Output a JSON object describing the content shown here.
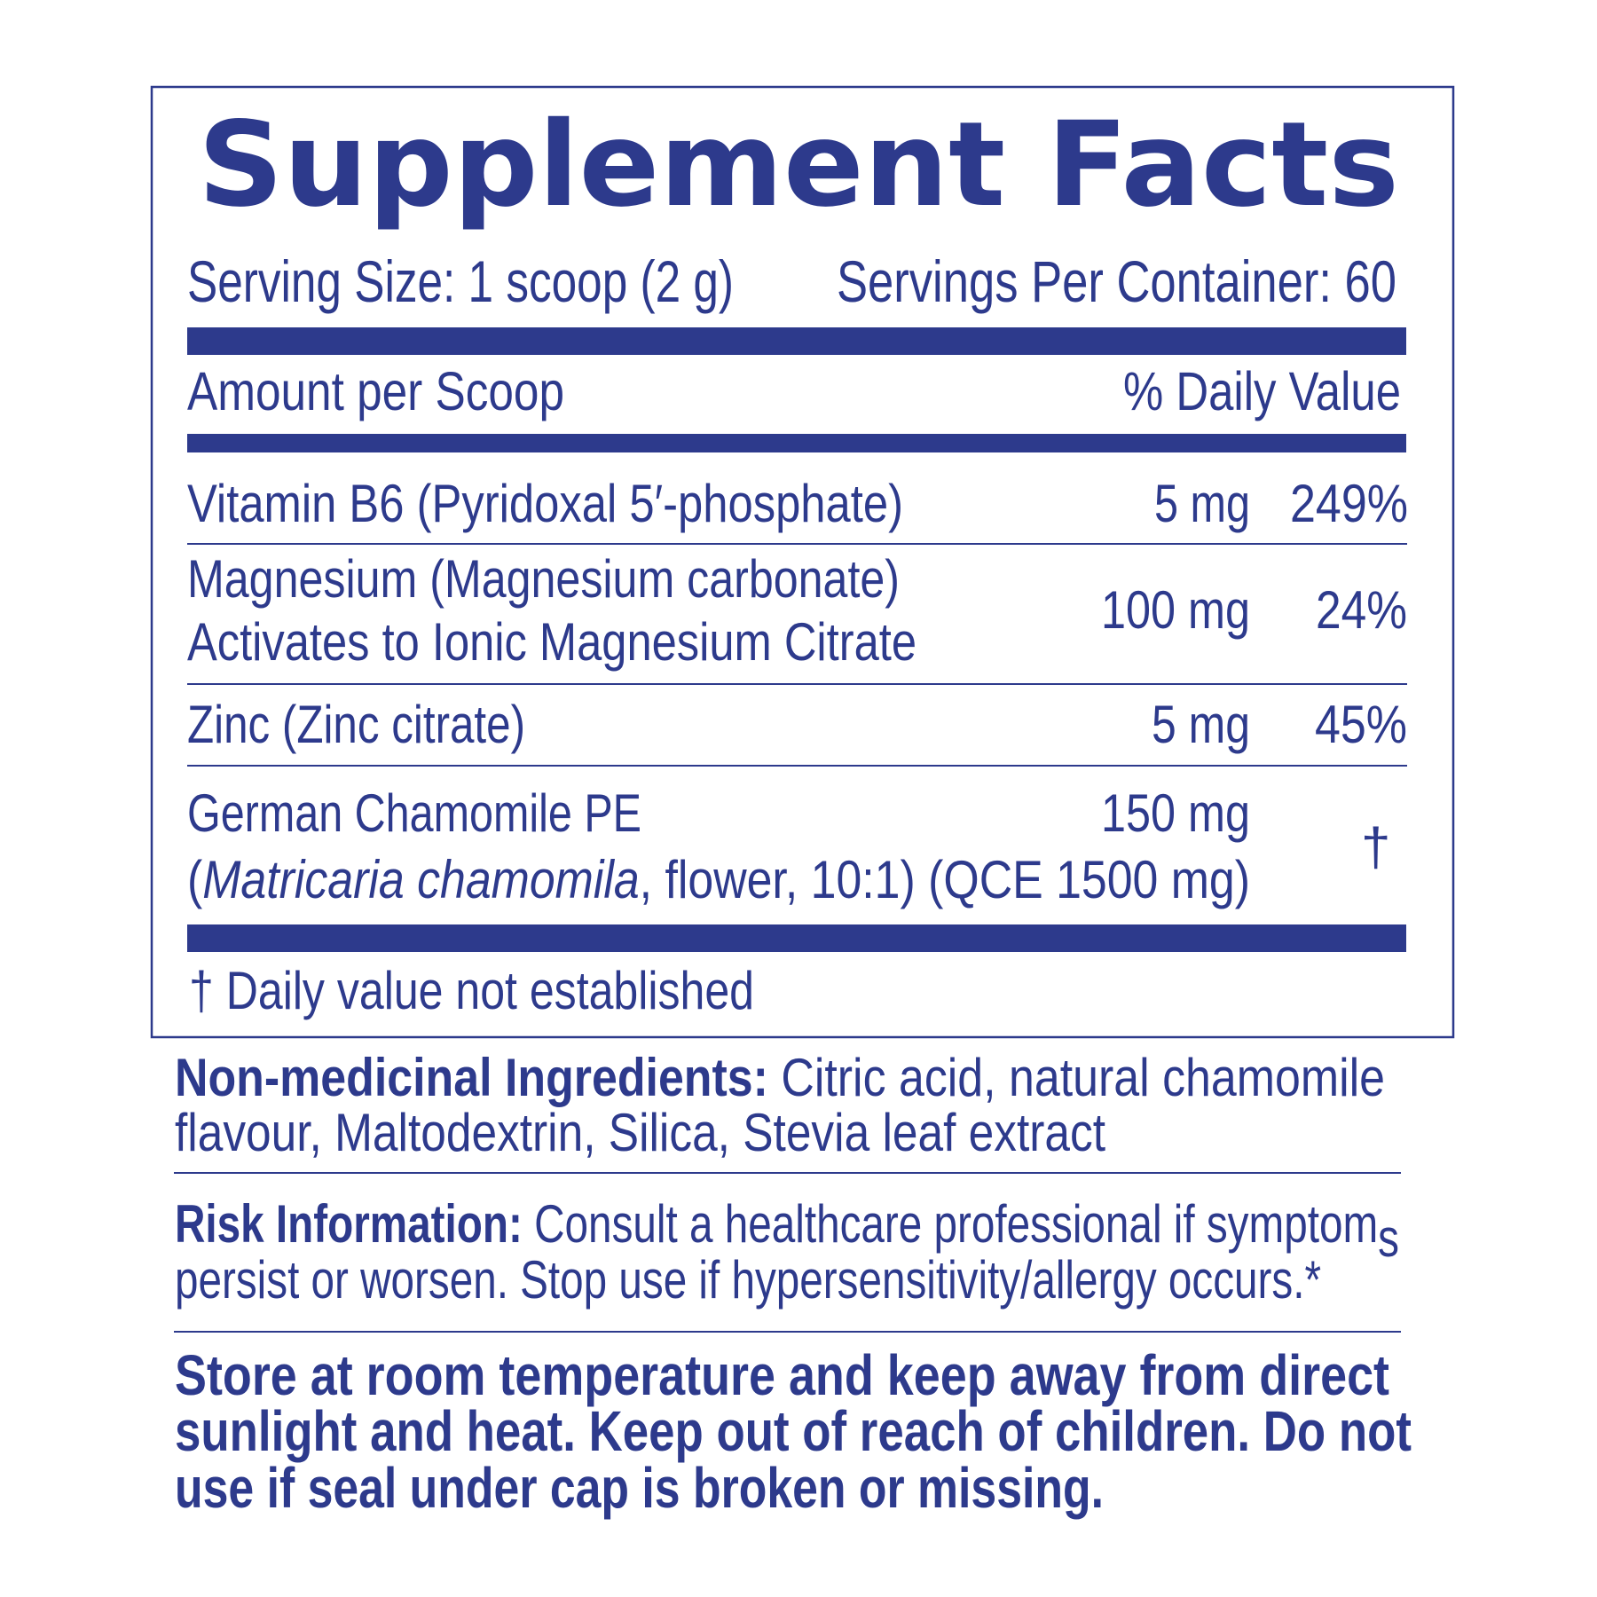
{
  "panel": {
    "title": "Supplement Facts",
    "serving_size": "Serving Size: 1 scoop (2 g)",
    "servings_per_container": "Servings Per Container: 60",
    "amount_header": "Amount per Scoop",
    "dv_header": "% Daily Value",
    "rows": [
      {
        "name": "Vitamin B6 (Pyridoxal 5′-phosphate)",
        "amount": "5 mg",
        "dv": "249%"
      },
      {
        "name": "Magnesium (Magnesium carbonate)",
        "name_line2": "Activates to Ionic Magnesium Citrate",
        "amount": "100 mg",
        "dv": "24%"
      },
      {
        "name": "Zinc (Zinc citrate)",
        "amount": "5 mg",
        "dv": "45%"
      },
      {
        "name": "German Chamomile PE",
        "name_line2_open": "(",
        "name_line2_italic": "Matricaria chamomila",
        "name_line2_rest": ", flower, 10:1) (QCE 1500 mg)",
        "amount": "150 mg",
        "dv": "†"
      }
    ],
    "footnote": "† Daily value not established"
  },
  "non_medicinal": {
    "label": "Non-medicinal Ingredients:",
    "line1": " Citric acid, natural chamomile",
    "line2": "flavour, Maltodextrin, Silica, Stevia leaf extract"
  },
  "risk": {
    "label": "Risk Information:",
    "line1": " Consult a healthcare professional if symptom",
    "line1_tail": "s",
    "line2": "persist or worsen. Stop use if hypersensitivity/allergy occurs.*"
  },
  "storage": {
    "line1": "Store at room temperature and keep away from direct",
    "line2": "sunlight and heat. Keep out of reach of children. Do not",
    "line3": "use if seal under cap is broken or missing."
  },
  "colors": {
    "ink": "#2d3a8c",
    "background": "#ffffff"
  }
}
